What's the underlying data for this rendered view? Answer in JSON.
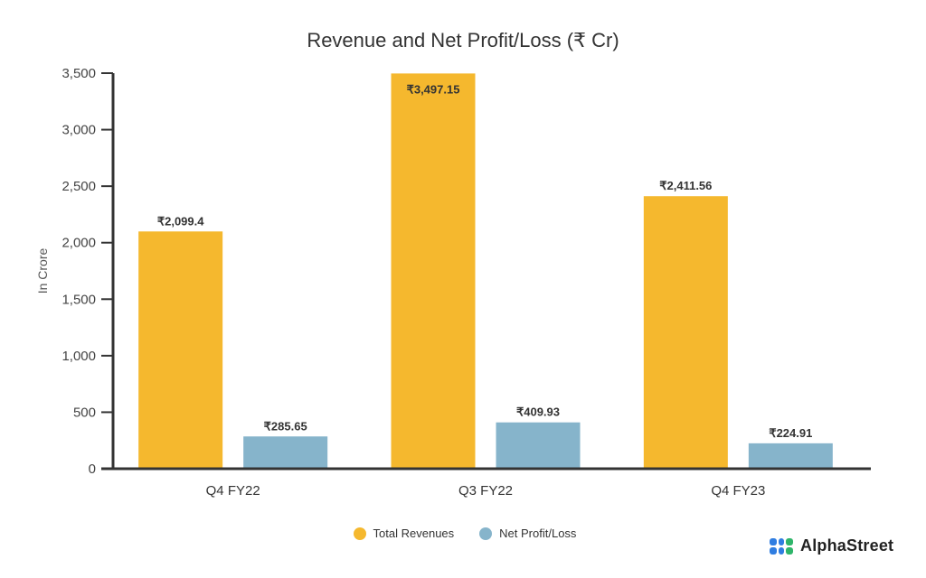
{
  "chart_data": {
    "type": "bar",
    "title": "Revenue and Net Profit/Loss (₹ Cr)",
    "xlabel": "",
    "ylabel": "In Crore",
    "ylim": [
      0,
      3500
    ],
    "yticks": [
      0,
      500,
      1000,
      1500,
      2000,
      2500,
      3000,
      3500
    ],
    "ytick_labels": [
      "0",
      "500",
      "1,000",
      "1,500",
      "2,000",
      "2,500",
      "3,000",
      "3,500"
    ],
    "categories": [
      "Q4 FY22",
      "Q3 FY22",
      "Q4 FY23"
    ],
    "grid": false,
    "legend_position": "bottom",
    "series": [
      {
        "name": "Total Revenues",
        "color": "#F5B82E",
        "values": [
          2099.4,
          3497.15,
          2411.56
        ],
        "labels": [
          "₹2,099.4",
          "₹3,497.15",
          "₹2,411.56"
        ]
      },
      {
        "name": "Net Profit/Loss",
        "color": "#86B4CB",
        "values": [
          285.65,
          409.93,
          224.91
        ],
        "labels": [
          "₹285.65",
          "₹409.93",
          "₹224.91"
        ]
      }
    ]
  },
  "branding": {
    "logo_text": "AlphaStreet",
    "logo_colors": [
      "#2F7DE1",
      "#2FB56A"
    ]
  }
}
